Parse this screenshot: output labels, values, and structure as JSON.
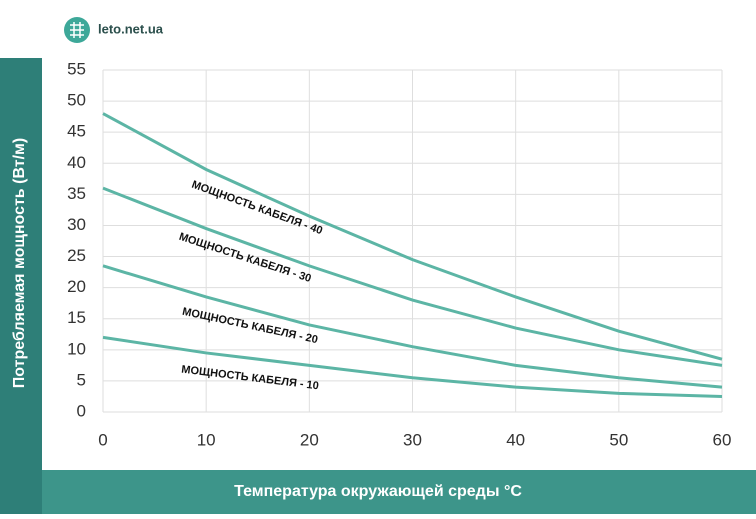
{
  "brand": "leto.net.ua",
  "chart_data": {
    "type": "line",
    "x_label": "Температура окружающей среды °C",
    "y_label": "Потребляемая мощность (Вт/м)",
    "x": [
      0,
      10,
      20,
      30,
      40,
      50,
      60
    ],
    "series": [
      {
        "name": "МОЩНОСТЬ КАБЕЛЯ - 40",
        "color": "#5cb5a5",
        "values": [
          48,
          39,
          31.5,
          24.5,
          18.5,
          13,
          8.5
        ]
      },
      {
        "name": "МОЩНОСТЬ КАБЕЛЯ - 30",
        "color": "#5cb5a5",
        "values": [
          36,
          29.5,
          23.5,
          18,
          13.5,
          10,
          7.5
        ]
      },
      {
        "name": "МОЩНОСТЬ КАБЕЛЯ - 20",
        "color": "#5cb5a5",
        "values": [
          23.5,
          18.5,
          14,
          10.5,
          7.5,
          5.5,
          4
        ]
      },
      {
        "name": "МОЩНОСТЬ КАБЕЛЯ - 10",
        "color": "#5cb5a5",
        "values": [
          12,
          9.5,
          7.5,
          5.5,
          4,
          3,
          2.5
        ]
      }
    ],
    "xlim": [
      0,
      60
    ],
    "xticks": [
      0,
      10,
      20,
      30,
      40,
      50,
      60
    ],
    "ylim": [
      0,
      55
    ],
    "yticks": [
      0,
      5,
      10,
      15,
      20,
      25,
      30,
      35,
      40,
      45,
      50,
      55
    ],
    "grid": true
  }
}
